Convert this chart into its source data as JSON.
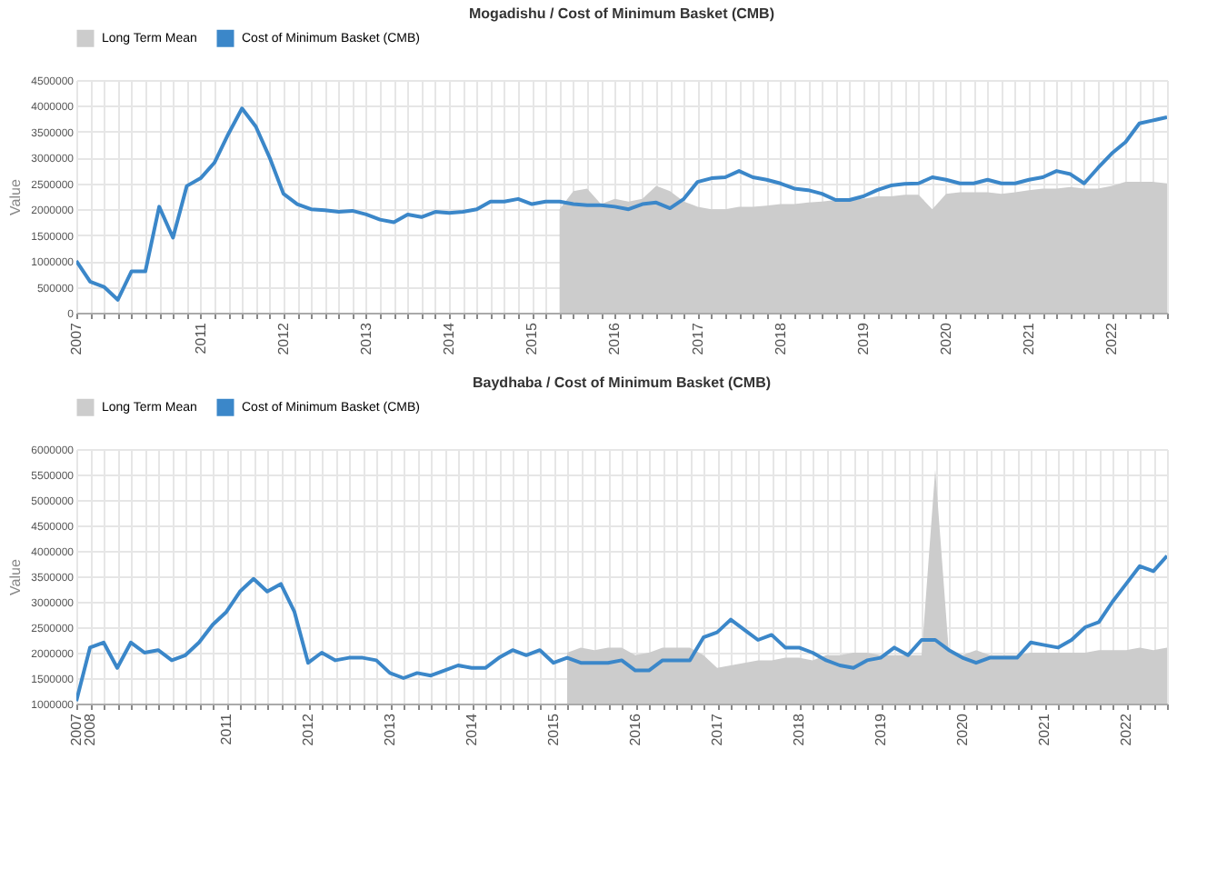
{
  "chart_data": [
    {
      "type": "line",
      "title": "Mogadishu / Cost of Minimum Basket (CMB)",
      "ylabel": "Value",
      "legend": "top",
      "grid": true,
      "categories": [
        "2007",
        null,
        null,
        null,
        null,
        null,
        null,
        null,
        null,
        "2011",
        null,
        null,
        null,
        null,
        null,
        "2012",
        null,
        null,
        null,
        null,
        null,
        "2013",
        null,
        null,
        null,
        null,
        null,
        "2014",
        null,
        null,
        null,
        null,
        null,
        "2015",
        null,
        null,
        null,
        null,
        null,
        "2016",
        null,
        null,
        null,
        null,
        null,
        "2017",
        null,
        null,
        null,
        null,
        null,
        "2018",
        null,
        null,
        null,
        null,
        null,
        "2019",
        null,
        null,
        null,
        null,
        null,
        "2020",
        null,
        null,
        null,
        null,
        null,
        "2021",
        null,
        null,
        null,
        null,
        null,
        "2022",
        null,
        null,
        null,
        null
      ],
      "ylim": [
        0,
        4500000
      ],
      "yticks": [
        0,
        500000,
        1000000,
        1500000,
        2000000,
        2500000,
        3000000,
        3500000,
        4000000,
        4500000
      ],
      "series": [
        {
          "name": "Long Term Mean",
          "type": "area",
          "color": "#cccccc",
          "values": [
            null,
            null,
            null,
            null,
            null,
            null,
            null,
            null,
            null,
            null,
            null,
            null,
            null,
            null,
            null,
            null,
            null,
            null,
            null,
            null,
            null,
            null,
            null,
            null,
            null,
            null,
            null,
            null,
            null,
            null,
            null,
            null,
            null,
            null,
            null,
            2000000,
            2350000,
            2400000,
            2100000,
            2200000,
            2150000,
            2200000,
            2450000,
            2350000,
            2150000,
            2050000,
            2000000,
            2000000,
            2050000,
            2050000,
            2070000,
            2100000,
            2100000,
            2130000,
            2150000,
            2180000,
            2180000,
            2200000,
            2250000,
            2250000,
            2280000,
            2280000,
            2000000,
            2300000,
            2330000,
            2330000,
            2330000,
            2300000,
            2330000,
            2370000,
            2400000,
            2400000,
            2430000,
            2400000,
            2400000,
            2450000,
            2530000,
            2530000,
            2530000,
            2500000
          ]
        },
        {
          "name": "Cost of Minimum Basket (CMB)",
          "type": "line",
          "color": "#3b87c9",
          "values": [
            1000000,
            600000,
            500000,
            250000,
            800000,
            800000,
            2050000,
            1450000,
            2450000,
            2600000,
            2900000,
            3450000,
            3950000,
            3600000,
            3000000,
            2300000,
            2100000,
            2000000,
            1980000,
            1950000,
            1970000,
            1900000,
            1800000,
            1750000,
            1900000,
            1850000,
            1950000,
            1930000,
            1950000,
            2000000,
            2150000,
            2150000,
            2200000,
            2100000,
            2150000,
            2150000,
            2100000,
            2080000,
            2080000,
            2050000,
            2000000,
            2100000,
            2130000,
            2020000,
            2200000,
            2530000,
            2600000,
            2620000,
            2740000,
            2620000,
            2570000,
            2500000,
            2400000,
            2370000,
            2300000,
            2180000,
            2180000,
            2250000,
            2370000,
            2460000,
            2490000,
            2500000,
            2620000,
            2570000,
            2500000,
            2500000,
            2570000,
            2500000,
            2500000,
            2570000,
            2620000,
            2740000,
            2680000,
            2500000,
            2800000,
            3080000,
            3300000,
            3660000,
            3720000,
            3780000
          ]
        }
      ]
    },
    {
      "type": "line",
      "title": "Baydhaba / Cost of Minimum Basket (CMB)",
      "ylabel": "Value",
      "legend": "top",
      "grid": true,
      "categories": [
        "2007",
        "2008",
        null,
        null,
        null,
        null,
        null,
        null,
        null,
        null,
        null,
        "2011",
        null,
        null,
        null,
        null,
        null,
        "2012",
        null,
        null,
        null,
        null,
        null,
        "2013",
        null,
        null,
        null,
        null,
        null,
        "2014",
        null,
        null,
        null,
        null,
        null,
        "2015",
        null,
        null,
        null,
        null,
        null,
        "2016",
        null,
        null,
        null,
        null,
        null,
        "2017",
        null,
        null,
        null,
        null,
        null,
        "2018",
        null,
        null,
        null,
        null,
        null,
        "2019",
        null,
        null,
        null,
        null,
        null,
        "2020",
        null,
        null,
        null,
        null,
        null,
        "2021",
        null,
        null,
        null,
        null,
        null,
        "2022",
        null,
        null,
        null
      ],
      "ylim": [
        1000000,
        6000000
      ],
      "yticks": [
        1000000,
        1500000,
        2000000,
        2500000,
        3000000,
        3500000,
        4000000,
        4500000,
        5000000,
        5500000,
        6000000
      ],
      "series": [
        {
          "name": "Long Term Mean",
          "type": "area",
          "color": "#cccccc",
          "values": [
            null,
            null,
            null,
            null,
            null,
            null,
            null,
            null,
            null,
            null,
            null,
            null,
            null,
            null,
            null,
            null,
            null,
            null,
            null,
            null,
            null,
            null,
            null,
            null,
            null,
            null,
            null,
            null,
            null,
            null,
            null,
            null,
            null,
            null,
            null,
            null,
            2000000,
            2100000,
            2050000,
            2100000,
            2100000,
            1950000,
            2000000,
            2100000,
            2100000,
            2100000,
            1950000,
            1700000,
            1750000,
            1800000,
            1850000,
            1850000,
            1900000,
            1900000,
            1850000,
            1950000,
            1950000,
            2000000,
            2000000,
            1950000,
            1950000,
            1950000,
            1950000,
            5600000,
            2000000,
            1950000,
            2050000,
            1950000,
            1950000,
            1950000,
            2000000,
            2000000,
            2000000,
            2000000,
            2000000,
            2050000,
            2050000,
            2050000,
            2100000,
            2050000,
            2100000
          ]
        },
        {
          "name": "Cost of Minimum Basket (CMB)",
          "type": "line",
          "color": "#3b87c9",
          "values": [
            1050000,
            2100000,
            2200000,
            1700000,
            2200000,
            2000000,
            2050000,
            1850000,
            1950000,
            2200000,
            2550000,
            2800000,
            3200000,
            3450000,
            3200000,
            3350000,
            2800000,
            1800000,
            2000000,
            1850000,
            1900000,
            1900000,
            1850000,
            1600000,
            1500000,
            1600000,
            1550000,
            1650000,
            1750000,
            1700000,
            1700000,
            1900000,
            2050000,
            1950000,
            2050000,
            1800000,
            1900000,
            1800000,
            1800000,
            1800000,
            1850000,
            1650000,
            1650000,
            1850000,
            1850000,
            1850000,
            2300000,
            2400000,
            2650000,
            2450000,
            2250000,
            2350000,
            2100000,
            2100000,
            2000000,
            1850000,
            1750000,
            1700000,
            1850000,
            1900000,
            2100000,
            1950000,
            2250000,
            2250000,
            2050000,
            1900000,
            1800000,
            1900000,
            1900000,
            1900000,
            2200000,
            2150000,
            2100000,
            2250000,
            2500000,
            2600000,
            3000000,
            3350000,
            3700000,
            3600000,
            3900000
          ]
        }
      ]
    }
  ]
}
